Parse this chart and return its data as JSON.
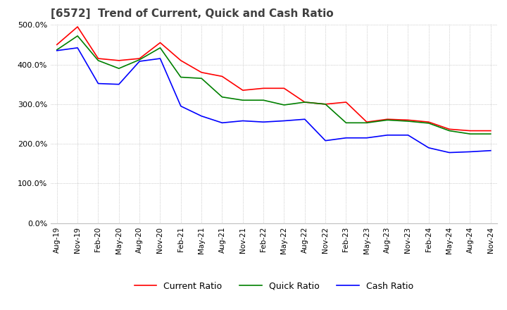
{
  "title": "[6572]  Trend of Current, Quick and Cash Ratio",
  "x_labels": [
    "Aug-19",
    "Nov-19",
    "Feb-20",
    "May-20",
    "Aug-20",
    "Nov-20",
    "Feb-21",
    "May-21",
    "Aug-21",
    "Nov-21",
    "Feb-22",
    "May-22",
    "Aug-22",
    "Nov-22",
    "Feb-23",
    "May-23",
    "Aug-23",
    "Nov-23",
    "Feb-24",
    "May-24",
    "Aug-24",
    "Nov-24"
  ],
  "current_ratio": [
    450,
    495,
    415,
    410,
    415,
    455,
    410,
    380,
    370,
    335,
    340,
    340,
    305,
    300,
    305,
    255,
    262,
    260,
    255,
    237,
    233,
    233
  ],
  "quick_ratio": [
    437,
    472,
    410,
    390,
    412,
    442,
    368,
    365,
    318,
    310,
    310,
    298,
    305,
    300,
    253,
    253,
    260,
    257,
    252,
    233,
    225,
    225
  ],
  "cash_ratio": [
    435,
    442,
    352,
    350,
    408,
    415,
    295,
    270,
    253,
    258,
    255,
    258,
    262,
    208,
    215,
    215,
    222,
    222,
    190,
    178,
    180,
    183
  ],
  "ylim": [
    0,
    500
  ],
  "yticks": [
    0,
    100,
    200,
    300,
    400,
    500
  ],
  "current_color": "#FF0000",
  "quick_color": "#008000",
  "cash_color": "#0000FF",
  "bg_color": "#FFFFFF",
  "grid_color": "#AAAAAA",
  "title_color": "#404040",
  "title_fontsize": 11
}
